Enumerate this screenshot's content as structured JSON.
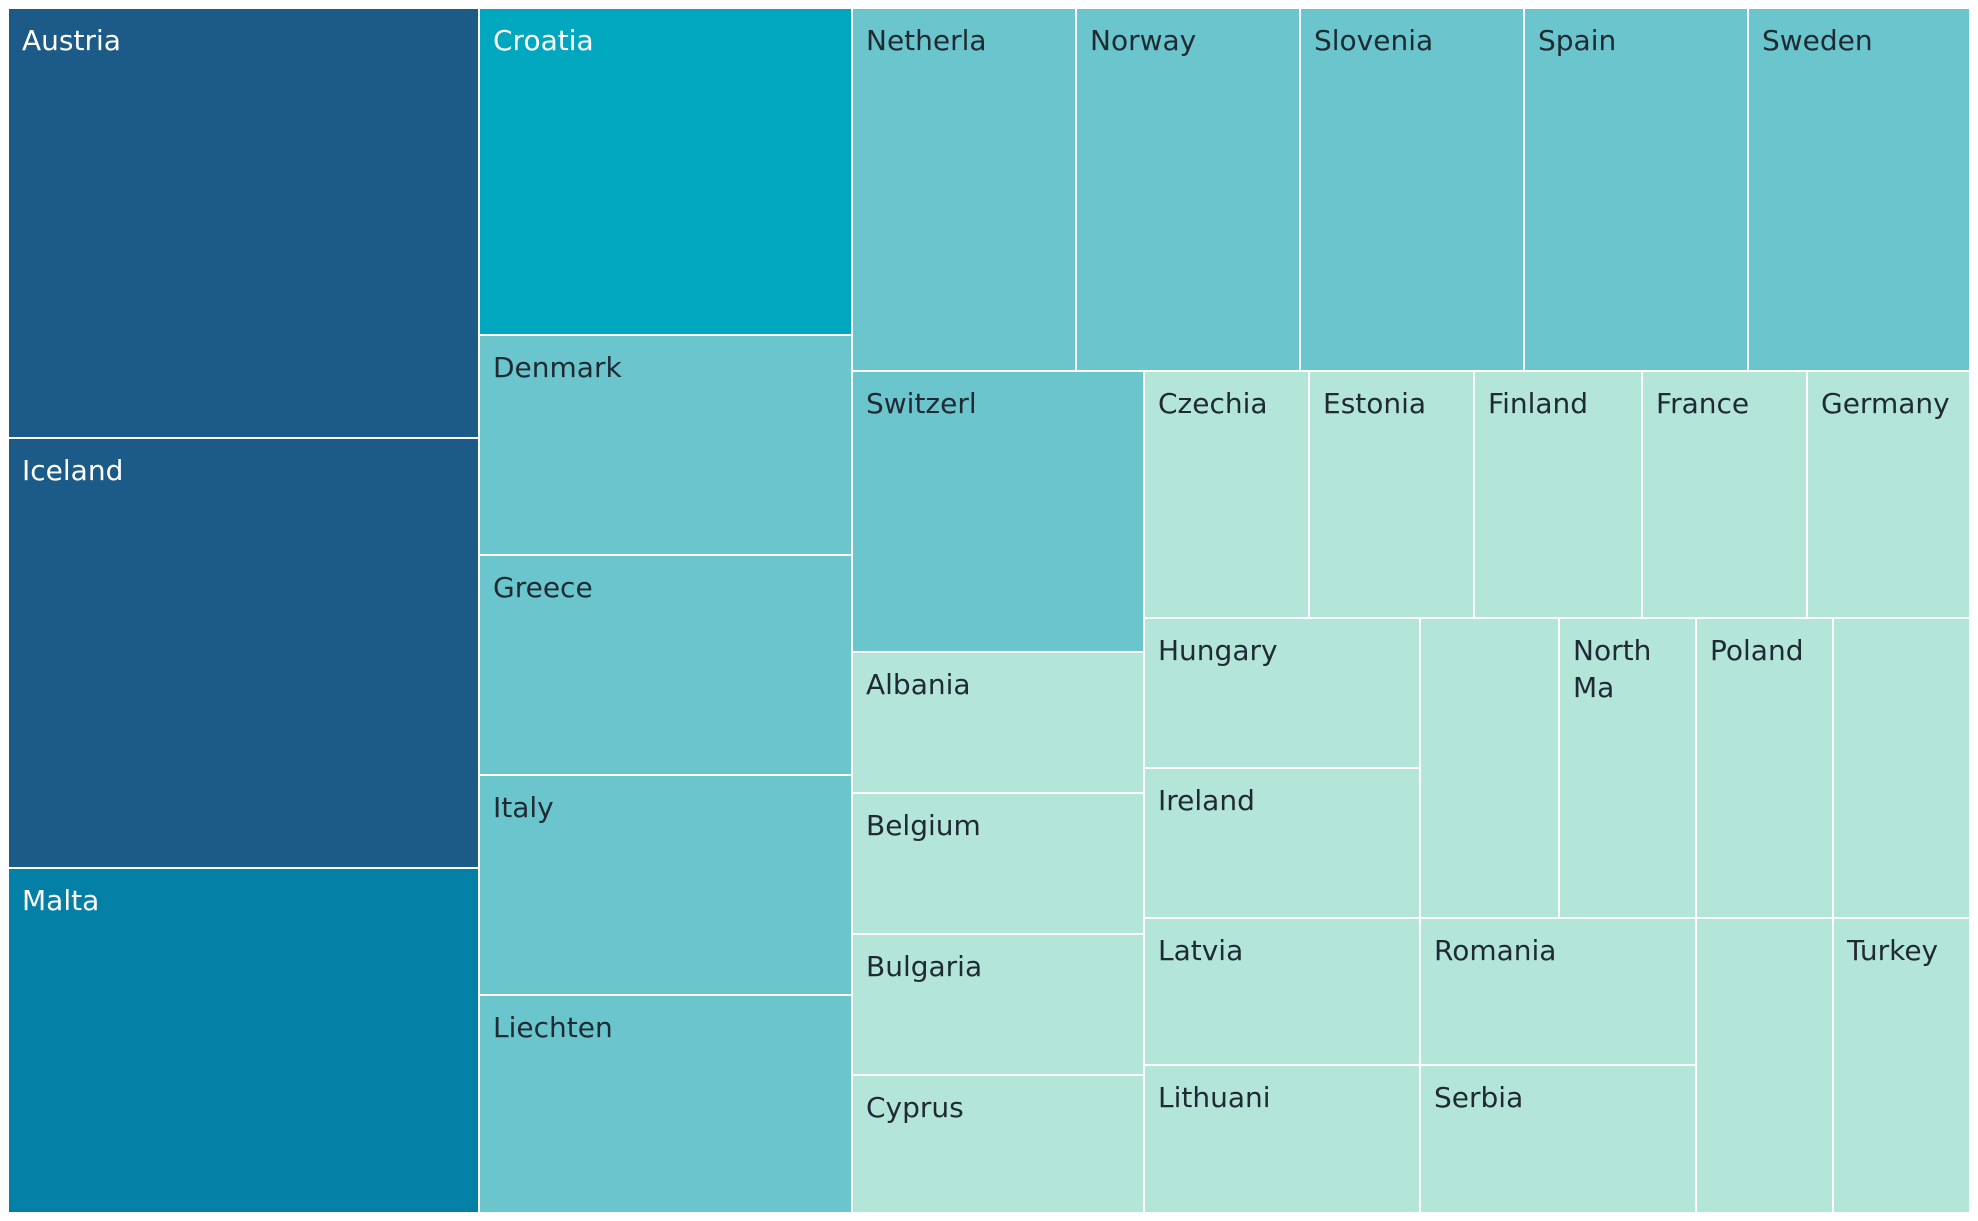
{
  "chart_data": {
    "type": "treemap",
    "title": "",
    "colors": {
      "darkest": "#1c5a87",
      "dark": "#047fa5",
      "mid": "#00a7bf",
      "light": "#6bc5cc",
      "lightest": "#b3e5d9",
      "label_on_dark": "#ffffff",
      "label_on_light": "#1f2a33",
      "border": "#ffffff"
    },
    "cells": [
      {
        "label": "Austria",
        "tone": "darkest"
      },
      {
        "label": "Iceland",
        "tone": "darkest"
      },
      {
        "label": "Malta",
        "tone": "dark"
      },
      {
        "label": "Croatia",
        "tone": "mid"
      },
      {
        "label": "Denmark",
        "tone": "light"
      },
      {
        "label": "Greece",
        "tone": "light"
      },
      {
        "label": "Italy",
        "tone": "light"
      },
      {
        "label": "Liechten",
        "tone": "light"
      },
      {
        "label": "Netherla",
        "tone": "light"
      },
      {
        "label": "Norway",
        "tone": "light"
      },
      {
        "label": "Slovenia",
        "tone": "light"
      },
      {
        "label": "Spain",
        "tone": "light"
      },
      {
        "label": "Sweden",
        "tone": "light"
      },
      {
        "label": "Switzerl",
        "tone": "light"
      },
      {
        "label": "Albania",
        "tone": "lightest"
      },
      {
        "label": "Belgium",
        "tone": "lightest"
      },
      {
        "label": "Bulgaria",
        "tone": "lightest"
      },
      {
        "label": "Cyprus",
        "tone": "lightest"
      },
      {
        "label": "Czechia",
        "tone": "lightest"
      },
      {
        "label": "Estonia",
        "tone": "lightest"
      },
      {
        "label": "Finland",
        "tone": "lightest"
      },
      {
        "label": "France",
        "tone": "lightest"
      },
      {
        "label": "Germany",
        "tone": "lightest"
      },
      {
        "label": "Hungary",
        "tone": "lightest"
      },
      {
        "label": "Ireland",
        "tone": "lightest"
      },
      {
        "label": "",
        "tone": "lightest"
      },
      {
        "label": "North Ma",
        "tone": "lightest"
      },
      {
        "label": "Poland",
        "tone": "lightest"
      },
      {
        "label": "",
        "tone": "lightest"
      },
      {
        "label": "Latvia",
        "tone": "lightest"
      },
      {
        "label": "Romania",
        "tone": "lightest"
      },
      {
        "label": "Lithuani",
        "tone": "lightest"
      },
      {
        "label": "Serbia",
        "tone": "lightest"
      },
      {
        "label": "",
        "tone": "lightest"
      },
      {
        "label": "Turkey",
        "tone": "lightest"
      }
    ]
  }
}
